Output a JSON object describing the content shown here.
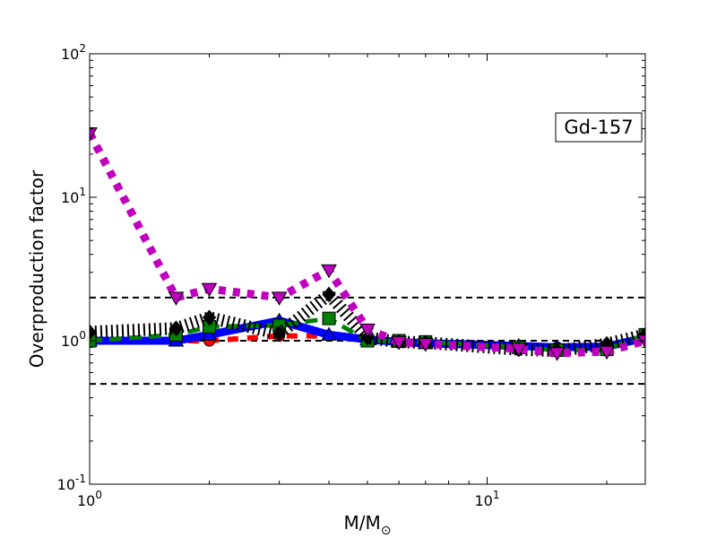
{
  "chart_data": {
    "type": "line",
    "title": "",
    "xlabel": "M/M",
    "xlabel_subscript": "⊙",
    "ylabel": "Overproduction factor",
    "annotation": "Gd-157",
    "xscale": "log",
    "yscale": "log",
    "xlim": [
      1,
      25
    ],
    "ylim": [
      0.1,
      100
    ],
    "x_ticks": [
      {
        "value": 1,
        "base": "10",
        "exp": "0"
      },
      {
        "value": 10,
        "base": "10",
        "exp": "1"
      }
    ],
    "y_ticks": [
      {
        "value": 0.1,
        "base": "10",
        "exp": "-1"
      },
      {
        "value": 1,
        "base": "10",
        "exp": "0"
      },
      {
        "value": 10,
        "base": "10",
        "exp": "1"
      },
      {
        "value": 100,
        "base": "10",
        "exp": "2"
      }
    ],
    "grid": false,
    "reference_lines": [
      2.0,
      1.0,
      0.5
    ],
    "reference_color": "#000000",
    "series": [
      {
        "color": "#ff0000",
        "marker": "circle",
        "dash": "12 10",
        "width": 6,
        "x": [
          1,
          1.65,
          2,
          3,
          4,
          5,
          6,
          7,
          12,
          15,
          20,
          25
        ],
        "y": [
          1.0,
          1.0,
          1.0,
          1.08,
          1.08,
          1.02,
          0.98,
          0.97,
          0.92,
          0.9,
          0.9,
          1.05
        ]
      },
      {
        "color": "#0000ff",
        "marker": "triangle-up",
        "dash": "",
        "width": 9,
        "x": [
          1,
          1.65,
          2,
          3,
          4,
          5,
          6,
          7,
          12,
          15,
          20,
          25
        ],
        "y": [
          1.0,
          1.0,
          1.1,
          1.38,
          1.1,
          1.02,
          0.98,
          0.96,
          0.92,
          0.9,
          0.91,
          1.05
        ]
      },
      {
        "color": "#008000",
        "marker": "square",
        "dash": "14 8",
        "width": 5,
        "x": [
          1,
          1.65,
          2,
          3,
          4,
          5,
          6,
          7,
          12,
          15,
          20,
          25
        ],
        "y": [
          1.0,
          1.1,
          1.25,
          1.28,
          1.43,
          1.0,
          1.0,
          0.98,
          0.9,
          0.86,
          0.87,
          1.1
        ]
      },
      {
        "color": "#000000",
        "marker": "diamond",
        "dash": "2 4",
        "width": 14,
        "x": [
          1,
          1.65,
          2,
          3,
          4,
          5,
          6,
          7,
          12,
          15,
          20,
          25
        ],
        "y": [
          1.15,
          1.22,
          1.45,
          1.12,
          2.1,
          1.05,
          0.98,
          0.97,
          0.87,
          0.85,
          0.95,
          1.1
        ]
      },
      {
        "color": "#bf00bf",
        "marker": "triangle-down",
        "dash": "8 8",
        "width": 9,
        "x": [
          1,
          1.65,
          2,
          3,
          4,
          5,
          6,
          7,
          12,
          15,
          20,
          25
        ],
        "y": [
          28,
          2.0,
          2.3,
          2.0,
          3.1,
          1.2,
          0.98,
          0.95,
          0.88,
          0.82,
          0.84,
          1.0
        ]
      }
    ]
  }
}
